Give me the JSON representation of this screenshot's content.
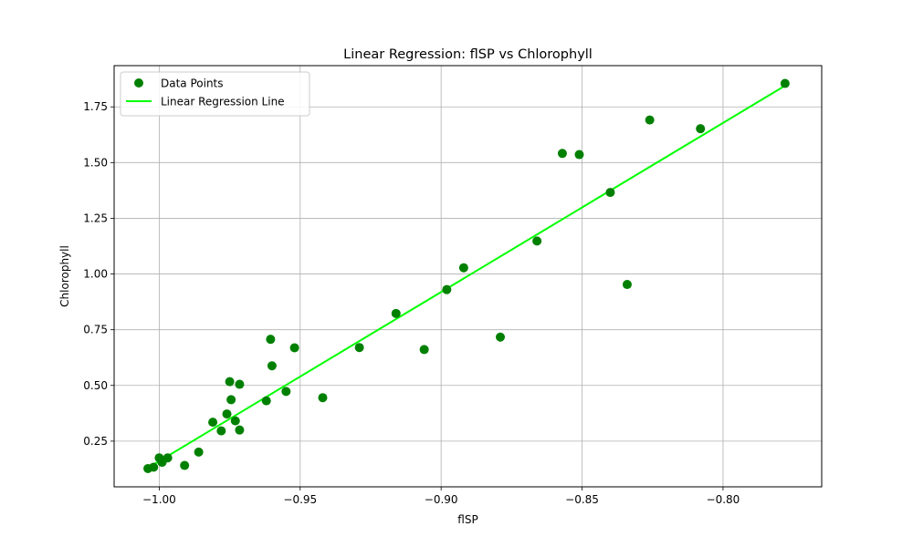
{
  "chart_data": {
    "type": "scatter",
    "title": "Linear Regression: flSP vs Chlorophyll",
    "xlabel": "flSP",
    "ylabel": "Chlorophyll",
    "xlim": [
      -1.016,
      -0.765
    ],
    "ylim": [
      0.045,
      1.935
    ],
    "xticks": [
      -1.0,
      -0.95,
      -0.9,
      -0.85,
      -0.8
    ],
    "xtick_labels": [
      "−1.00",
      "−0.95",
      "−0.90",
      "−0.85",
      "−0.80"
    ],
    "yticks": [
      0.25,
      0.5,
      0.75,
      1.0,
      1.25,
      1.5,
      1.75
    ],
    "ytick_labels": [
      "0.25",
      "0.50",
      "0.75",
      "1.00",
      "1.25",
      "1.50",
      "1.75"
    ],
    "grid": true,
    "legend_position": "top-left",
    "series": [
      {
        "name": "Data Points",
        "kind": "scatter",
        "color": "#008000",
        "points": [
          {
            "x": -1.004,
            "y": 0.127
          },
          {
            "x": -1.002,
            "y": 0.133
          },
          {
            "x": -1.0,
            "y": 0.175
          },
          {
            "x": -0.999,
            "y": 0.155
          },
          {
            "x": -0.997,
            "y": 0.175
          },
          {
            "x": -0.991,
            "y": 0.141
          },
          {
            "x": -0.986,
            "y": 0.201
          },
          {
            "x": -0.981,
            "y": 0.335
          },
          {
            "x": -0.978,
            "y": 0.296
          },
          {
            "x": -0.976,
            "y": 0.372
          },
          {
            "x": -0.975,
            "y": 0.517
          },
          {
            "x": -0.9745,
            "y": 0.436
          },
          {
            "x": -0.973,
            "y": 0.341
          },
          {
            "x": -0.9715,
            "y": 0.505
          },
          {
            "x": -0.9715,
            "y": 0.3
          },
          {
            "x": -0.962,
            "y": 0.431
          },
          {
            "x": -0.9605,
            "y": 0.707
          },
          {
            "x": -0.96,
            "y": 0.588
          },
          {
            "x": -0.955,
            "y": 0.473
          },
          {
            "x": -0.952,
            "y": 0.669
          },
          {
            "x": -0.942,
            "y": 0.445
          },
          {
            "x": -0.929,
            "y": 0.67
          },
          {
            "x": -0.916,
            "y": 0.823
          },
          {
            "x": -0.906,
            "y": 0.661
          },
          {
            "x": -0.898,
            "y": 0.93
          },
          {
            "x": -0.892,
            "y": 1.028
          },
          {
            "x": -0.879,
            "y": 0.717
          },
          {
            "x": -0.866,
            "y": 1.148
          },
          {
            "x": -0.857,
            "y": 1.541
          },
          {
            "x": -0.851,
            "y": 1.536
          },
          {
            "x": -0.84,
            "y": 1.366
          },
          {
            "x": -0.834,
            "y": 0.953
          },
          {
            "x": -0.826,
            "y": 1.691
          },
          {
            "x": -0.808,
            "y": 1.652
          },
          {
            "x": -0.778,
            "y": 1.855
          }
        ]
      },
      {
        "name": "Linear Regression Line",
        "kind": "line",
        "color": "#00ff00",
        "x": [
          -1.004,
          -0.778
        ],
        "y": [
          0.13,
          1.845
        ]
      }
    ]
  }
}
